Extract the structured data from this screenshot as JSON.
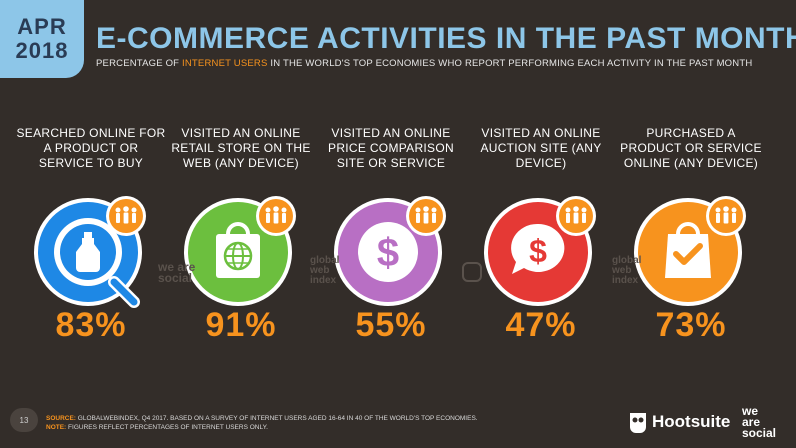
{
  "badge": {
    "month": "APR",
    "year": "2018"
  },
  "header": {
    "title": "E-COMMERCE ACTIVITIES IN THE PAST MONTH",
    "subtitle_pre": "PERCENTAGE OF ",
    "subtitle_highlight": "INTERNET USERS",
    "subtitle_post": " IN THE WORLD'S TOP ECONOMIES WHO REPORT PERFORMING EACH ACTIVITY IN THE PAST MONTH"
  },
  "activities": [
    {
      "label": "SEARCHED ONLINE FOR A PRODUCT OR SERVICE TO BUY",
      "value": "83%",
      "color": "#1e88e5",
      "icon": "search-bottle-icon"
    },
    {
      "label": "VISITED AN ONLINE RETAIL STORE ON THE WEB (ANY DEVICE)",
      "value": "91%",
      "color": "#6cbf3e",
      "icon": "shopping-bag-globe-icon"
    },
    {
      "label": "VISITED AN ONLINE PRICE COMPARISON SITE OR SERVICE",
      "value": "55%",
      "color": "#b86fc4",
      "icon": "dollar-coin-icon"
    },
    {
      "label": "VISITED AN ONLINE AUCTION SITE (ANY DEVICE)",
      "value": "47%",
      "color": "#e53935",
      "icon": "dollar-speech-bubble-icon"
    },
    {
      "label": "PURCHASED A PRODUCT OR SERVICE ONLINE (ANY DEVICE)",
      "value": "73%",
      "color": "#f7931e",
      "icon": "shopping-bag-check-icon"
    }
  ],
  "watermarks": {
    "was": "we are social",
    "gwi": "global web index"
  },
  "footer": {
    "source_label": "SOURCE:",
    "source_text": " GLOBALWEBINDEX, Q4 2017. BASED ON A SURVEY OF INTERNET USERS AGED 16-64 IN 40 OF THE WORLD'S TOP ECONOMIES.",
    "note_label": "NOTE:",
    "note_text": " FIGURES REFLECT PERCENTAGES OF INTERNET USERS ONLY."
  },
  "page_number": "13",
  "brands": {
    "hootsuite": "Hootsuite",
    "was_line1": "we",
    "was_line2": "are",
    "was_line3": "social"
  }
}
